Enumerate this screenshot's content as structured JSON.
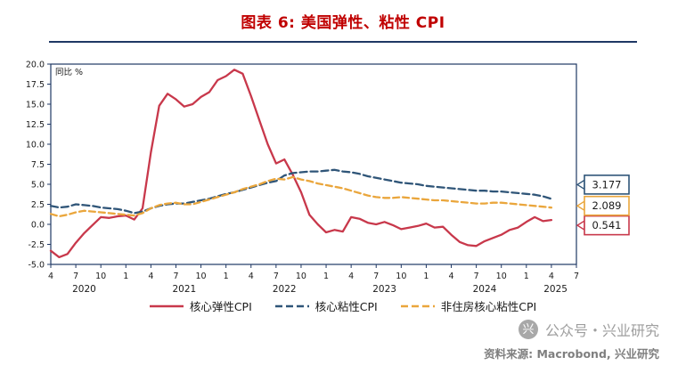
{
  "title": "图表 6: 美国弹性、粘性 CPI",
  "watermark": "公众号・兴业研究",
  "watermark_logo_glyph": "兴",
  "source": "资料来源: Macrobond, 兴业研究",
  "chart_data": {
    "type": "line",
    "title": "图表 6: 美国弹性、粘性 CPI",
    "unit_label": "同比 %",
    "ylim": [
      -5,
      20
    ],
    "y_ticks": [
      20,
      17.5,
      15,
      12.5,
      10,
      7.5,
      5,
      2.5,
      0,
      -2.5,
      -5
    ],
    "x_start": "2020-04",
    "x_frequency": "monthly",
    "x_axis_months": 63,
    "frame_color": "#1F3864",
    "legend_position": "bottom",
    "grid": false,
    "x_ticks": [
      {
        "m": 0,
        "l": "4"
      },
      {
        "m": 3,
        "l": "7"
      },
      {
        "m": 6,
        "l": "10"
      },
      {
        "m": 9,
        "l": "1"
      },
      {
        "m": 12,
        "l": "4"
      },
      {
        "m": 15,
        "l": "7"
      },
      {
        "m": 18,
        "l": "10"
      },
      {
        "m": 21,
        "l": "1"
      },
      {
        "m": 24,
        "l": "4"
      },
      {
        "m": 27,
        "l": "7"
      },
      {
        "m": 30,
        "l": "10"
      },
      {
        "m": 33,
        "l": "1"
      },
      {
        "m": 36,
        "l": "4"
      },
      {
        "m": 39,
        "l": "7"
      },
      {
        "m": 42,
        "l": "10"
      },
      {
        "m": 45,
        "l": "1"
      },
      {
        "m": 48,
        "l": "4"
      },
      {
        "m": 51,
        "l": "7"
      },
      {
        "m": 54,
        "l": "10"
      },
      {
        "m": 57,
        "l": "1"
      },
      {
        "m": 60,
        "l": "4"
      },
      {
        "m": 63,
        "l": "7"
      }
    ],
    "year_ticks": [
      {
        "m": 4,
        "l": "2020"
      },
      {
        "m": 16,
        "l": "2021"
      },
      {
        "m": 28,
        "l": "2022"
      },
      {
        "m": 40,
        "l": "2023"
      },
      {
        "m": 52,
        "l": "2024"
      },
      {
        "m": 60.5,
        "l": "2025"
      }
    ],
    "series": [
      {
        "name": "核心弹性CPI",
        "color": "#C8384B",
        "style": "solid",
        "end_label": "0.541",
        "values": [
          -3.3,
          -4.1,
          -3.7,
          -2.3,
          -1.1,
          -0.1,
          0.9,
          0.8,
          1.0,
          1.1,
          0.6,
          2.0,
          9.0,
          14.8,
          16.3,
          15.6,
          14.7,
          15.0,
          15.9,
          16.5,
          18.0,
          18.5,
          19.3,
          18.8,
          16.0,
          13.0,
          10.0,
          7.6,
          8.1,
          6.2,
          4.0,
          1.2,
          0.0,
          -1.0,
          -0.7,
          -0.9,
          0.9,
          0.7,
          0.2,
          0.0,
          0.3,
          -0.1,
          -0.6,
          -0.4,
          -0.2,
          0.1,
          -0.4,
          -0.3,
          -1.3,
          -2.2,
          -2.6,
          -2.7,
          -2.1,
          -1.7,
          -1.3,
          -0.7,
          -0.4,
          0.3,
          0.9,
          0.4,
          0.541
        ]
      },
      {
        "name": "核心粘性CPI",
        "color": "#2F5578",
        "style": "dashed",
        "end_label": "3.177",
        "values": [
          2.3,
          2.1,
          2.2,
          2.5,
          2.4,
          2.3,
          2.1,
          2.0,
          1.9,
          1.7,
          1.4,
          1.6,
          2.0,
          2.3,
          2.5,
          2.6,
          2.6,
          2.8,
          3.0,
          3.2,
          3.5,
          3.8,
          4.0,
          4.3,
          4.6,
          4.9,
          5.2,
          5.4,
          6.1,
          6.4,
          6.5,
          6.6,
          6.6,
          6.7,
          6.8,
          6.6,
          6.5,
          6.3,
          6.0,
          5.8,
          5.6,
          5.4,
          5.2,
          5.1,
          5.0,
          4.8,
          4.7,
          4.6,
          4.5,
          4.4,
          4.3,
          4.2,
          4.2,
          4.1,
          4.1,
          4.0,
          3.9,
          3.8,
          3.7,
          3.5,
          3.177
        ]
      },
      {
        "name": "非住房核心粘性CPI",
        "color": "#EAA63C",
        "style": "dashed",
        "end_label": "2.089",
        "values": [
          1.3,
          1.0,
          1.2,
          1.5,
          1.7,
          1.6,
          1.5,
          1.4,
          1.3,
          1.2,
          1.1,
          1.4,
          2.0,
          2.4,
          2.6,
          2.7,
          2.5,
          2.5,
          2.8,
          3.1,
          3.4,
          3.7,
          4.0,
          4.4,
          4.7,
          5.0,
          5.4,
          5.7,
          5.6,
          5.9,
          5.6,
          5.4,
          5.1,
          4.9,
          4.7,
          4.5,
          4.2,
          3.9,
          3.6,
          3.4,
          3.3,
          3.3,
          3.4,
          3.3,
          3.2,
          3.1,
          3.0,
          3.0,
          2.9,
          2.8,
          2.7,
          2.6,
          2.6,
          2.7,
          2.7,
          2.6,
          2.5,
          2.4,
          2.3,
          2.2,
          2.089
        ]
      }
    ]
  }
}
